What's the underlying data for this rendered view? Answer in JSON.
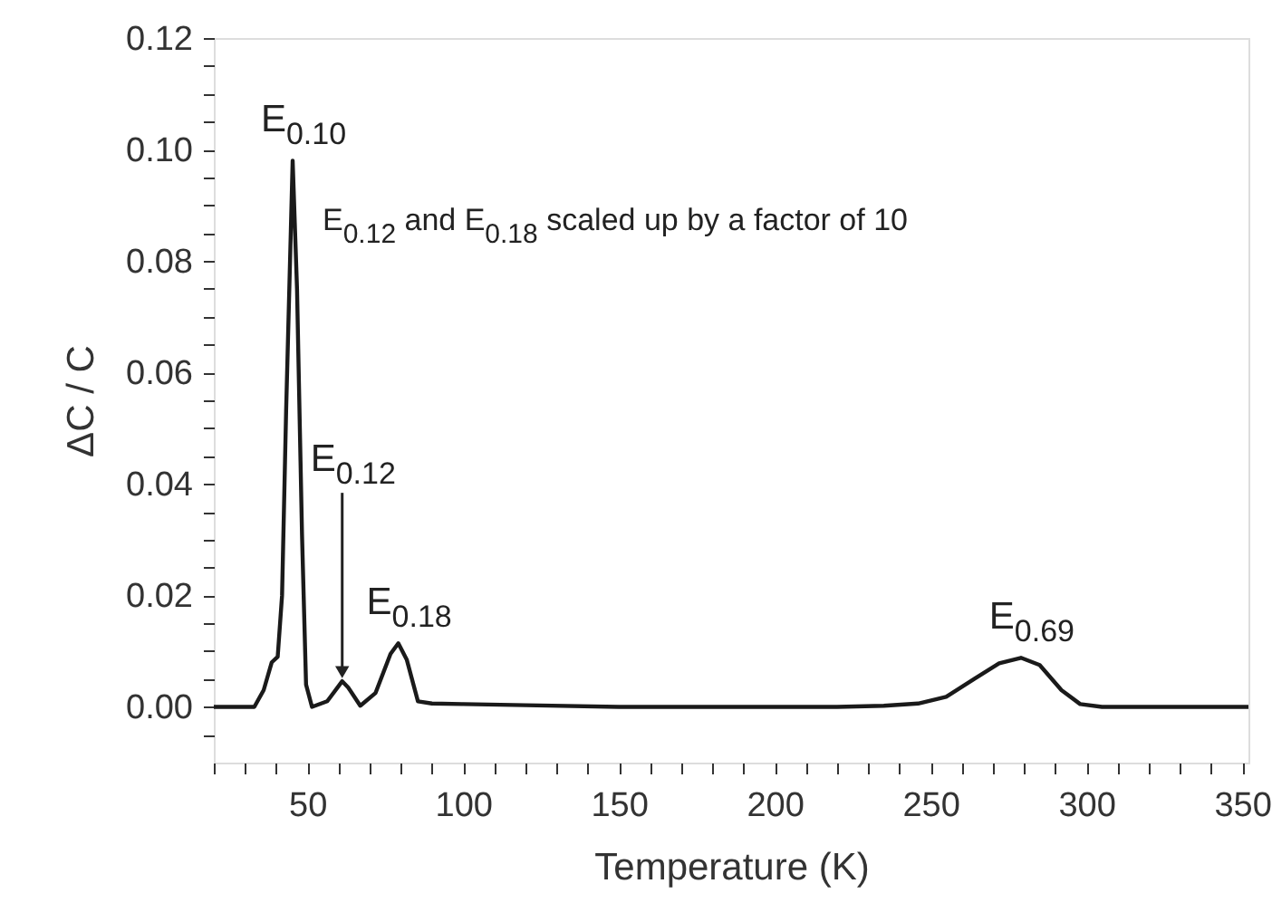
{
  "chart_data": {
    "type": "line",
    "xlabel": "Temperature (K)",
    "ylabel": "ΔC / C",
    "x": [
      20,
      30,
      33,
      36,
      38.6,
      40.5,
      41.9,
      43.2,
      45.3,
      46.7,
      48.3,
      49.6,
      51.5,
      56.4,
      61.2,
      63.1,
      67,
      71.9,
      76.7,
      79.2,
      81.9,
      85.5,
      90,
      100,
      120,
      150,
      180,
      200,
      220,
      235,
      246,
      255,
      264,
      272,
      279,
      285,
      292,
      298,
      305,
      320,
      340,
      352
    ],
    "series": [
      {
        "color": "#1a1a1a",
        "values": [
          0,
          0,
          0,
          0.003,
          0.008,
          0.009,
          0.02,
          0.053,
          0.098,
          0.075,
          0.031,
          0.004,
          0,
          0.001,
          0.0046,
          0.0035,
          0.0002,
          0.0025,
          0.0095,
          0.0114,
          0.0085,
          0.001,
          0.0006,
          0.0005,
          0.0003,
          0,
          0,
          0,
          0,
          0.0002,
          0.0006,
          0.0018,
          0.005,
          0.0078,
          0.0088,
          0.0075,
          0.003,
          0.0005,
          0,
          0,
          0,
          0
        ]
      }
    ],
    "xlim": [
      20,
      352
    ],
    "ylim": [
      -0.01,
      0.12
    ],
    "xticks": [
      {
        "value": 20,
        "label": null
      },
      {
        "value": 30,
        "label": null
      },
      {
        "value": 40,
        "label": null
      },
      50,
      {
        "value": 60,
        "label": null
      },
      {
        "value": 70,
        "label": null
      },
      {
        "value": 80,
        "label": null
      },
      {
        "value": 90,
        "label": null
      },
      100,
      {
        "value": 110,
        "label": null
      },
      {
        "value": 120,
        "label": null
      },
      {
        "value": 130,
        "label": null
      },
      {
        "value": 140,
        "label": null
      },
      150,
      {
        "value": 160,
        "label": null
      },
      {
        "value": 170,
        "label": null
      },
      {
        "value": 180,
        "label": null
      },
      {
        "value": 190,
        "label": null
      },
      200,
      {
        "value": 210,
        "label": null
      },
      {
        "value": 220,
        "label": null
      },
      {
        "value": 230,
        "label": null
      },
      {
        "value": 240,
        "label": null
      },
      250,
      {
        "value": 260,
        "label": null
      },
      {
        "value": 270,
        "label": null
      },
      {
        "value": 280,
        "label": null
      },
      {
        "value": 290,
        "label": null
      },
      300,
      {
        "value": 310,
        "label": null
      },
      {
        "value": 320,
        "label": null
      },
      {
        "value": 330,
        "label": null
      },
      {
        "value": 340,
        "label": null
      },
      350
    ],
    "yticks": [
      {
        "value": -0.005,
        "label": null
      },
      {
        "value": 0,
        "label": "0.00"
      },
      {
        "value": 0.005,
        "label": null
      },
      {
        "value": 0.01,
        "label": null
      },
      {
        "value": 0.015,
        "label": null
      },
      {
        "value": 0.02,
        "label": "0.02"
      },
      {
        "value": 0.025,
        "label": null
      },
      {
        "value": 0.03,
        "label": null
      },
      {
        "value": 0.035,
        "label": null
      },
      {
        "value": 0.04,
        "label": "0.04"
      },
      {
        "value": 0.045,
        "label": null
      },
      {
        "value": 0.05,
        "label": null
      },
      {
        "value": 0.055,
        "label": null
      },
      {
        "value": 0.06,
        "label": "0.06"
      },
      {
        "value": 0.065,
        "label": null
      },
      {
        "value": 0.07,
        "label": null
      },
      {
        "value": 0.075,
        "label": null
      },
      {
        "value": 0.08,
        "label": "0.08"
      },
      {
        "value": 0.085,
        "label": null
      },
      {
        "value": 0.09,
        "label": null
      },
      {
        "value": 0.095,
        "label": null
      },
      {
        "value": 0.1,
        "label": "0.10"
      },
      {
        "value": 0.105,
        "label": null
      },
      {
        "value": 0.11,
        "label": null
      },
      {
        "value": 0.115,
        "label": null
      },
      {
        "value": 0.12,
        "label": "0.12"
      }
    ],
    "grid": false,
    "marker": "none",
    "line_style": "solid",
    "annotations": [
      {
        "text": "E$_{0.10}$",
        "x": 45.3,
        "y": 0.098
      },
      "E$_{0.12}$ and E$_{0.18}$ scaled up by a factor of 10",
      {
        "text": "E$_{0.12}$",
        "x": 61.2,
        "y": 0.0046
      },
      {
        "text": "E$_{0.18}$",
        "x": 79.2,
        "y": 0.0114
      },
      {
        "text": "E$_{0.69}$",
        "x": 279,
        "y": 0.0088
      }
    ]
  }
}
